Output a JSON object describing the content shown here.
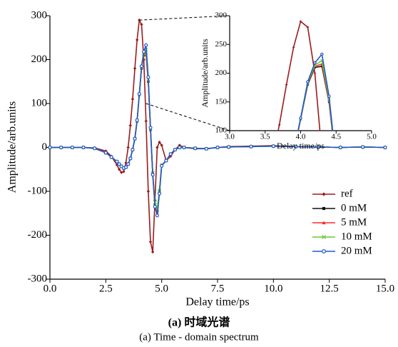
{
  "chart_data": {
    "type": "line",
    "xlabel": "Delay time/ps",
    "ylabel": "Amplitude/arb.units",
    "caption": "(a) 时域光谱",
    "subcaption": "(a) Time - domain spectrum",
    "xlim": [
      0,
      15
    ],
    "ylim": [
      -300,
      300
    ],
    "xticks": [
      {
        "value": 0,
        "label": "0.0"
      },
      {
        "value": 2.5,
        "label": "2.5"
      },
      {
        "value": 5,
        "label": "5.0"
      },
      {
        "value": 7.5,
        "label": "7.5"
      },
      {
        "value": 10,
        "label": "10.0"
      },
      {
        "value": 12.5,
        "label": "12.5"
      },
      {
        "value": 15,
        "label": "15.0"
      }
    ],
    "yticks": [
      -300,
      -200,
      -100,
      0,
      100,
      200,
      300
    ],
    "legend": "lower right",
    "x": [
      0,
      0.5,
      1,
      1.5,
      2,
      2.5,
      2.75,
      3,
      3.1,
      3.2,
      3.3,
      3.4,
      3.5,
      3.6,
      3.7,
      3.8,
      3.9,
      4.0,
      4.1,
      4.2,
      4.3,
      4.4,
      4.5,
      4.6,
      4.7,
      4.8,
      4.9,
      5.0,
      5.2,
      5.4,
      5.6,
      5.8,
      6.0,
      6.5,
      7,
      7.5,
      8,
      9,
      10,
      11,
      12,
      13,
      14,
      15
    ],
    "series": [
      {
        "name": "ref",
        "color": "#9b1c1c",
        "marker": "diamond",
        "values": [
          0,
          0,
          0,
          0,
          -1,
          -8,
          -20,
          -40,
          -50,
          -57,
          -55,
          -35,
          0,
          50,
          110,
          180,
          245,
          290,
          280,
          200,
          60,
          -100,
          -215,
          -238,
          -120,
          0,
          12,
          5,
          -30,
          -20,
          -5,
          5,
          0,
          -3,
          -3,
          0,
          2,
          3,
          4,
          2,
          1,
          0,
          1,
          0
        ]
      },
      {
        "name": "0 mM",
        "color": "#111111",
        "marker": "square",
        "values": [
          0,
          0,
          0,
          0,
          -2,
          -12,
          -22,
          -32,
          -38,
          -43,
          -47,
          -45,
          -38,
          -25,
          -5,
          20,
          60,
          120,
          180,
          210,
          212,
          150,
          40,
          -60,
          -130,
          -145,
          -100,
          -40,
          -30,
          -15,
          -5,
          0,
          0,
          -2,
          -3,
          0,
          1,
          2,
          3,
          2,
          1,
          0,
          1,
          0
        ]
      },
      {
        "name": "5 mM",
        "color": "#ff2a2a",
        "marker": "triangle",
        "values": [
          0,
          0,
          0,
          0,
          -2,
          -12,
          -22,
          -32,
          -38,
          -43,
          -47,
          -45,
          -38,
          -25,
          -5,
          20,
          60,
          120,
          182,
          212,
          216,
          152,
          40,
          -60,
          -132,
          -148,
          -100,
          -40,
          -30,
          -15,
          -5,
          0,
          0,
          -2,
          -3,
          0,
          1,
          2,
          3,
          2,
          1,
          0,
          1,
          0
        ]
      },
      {
        "name": "10 mM",
        "color": "#66cc33",
        "marker": "cross",
        "values": [
          0,
          0,
          0,
          0,
          -2,
          -12,
          -22,
          -32,
          -38,
          -43,
          -47,
          -45,
          -38,
          -25,
          -5,
          20,
          60,
          120,
          183,
          214,
          222,
          155,
          42,
          -58,
          -125,
          -140,
          -98,
          -40,
          -30,
          -15,
          -5,
          0,
          0,
          -2,
          -3,
          0,
          1,
          2,
          3,
          2,
          1,
          0,
          1,
          0
        ]
      },
      {
        "name": "20 mM",
        "color": "#2255cc",
        "marker": "circle",
        "values": [
          0,
          0,
          0,
          0,
          -2,
          -12,
          -22,
          -32,
          -38,
          -43,
          -47,
          -45,
          -38,
          -25,
          -5,
          20,
          62,
          122,
          185,
          218,
          233,
          160,
          45,
          -62,
          -135,
          -155,
          -105,
          -42,
          -30,
          -15,
          -5,
          0,
          0,
          -2,
          -3,
          0,
          1,
          2,
          3,
          2,
          1,
          0,
          1,
          0
        ]
      }
    ],
    "inset": {
      "xlabel": "Delay time/ps",
      "ylabel": "Amplitude/arb.units",
      "xlim": [
        3,
        5
      ],
      "ylim": [
        100,
        300
      ],
      "xticks": [
        {
          "value": 3,
          "label": "3.0"
        },
        {
          "value": 3.5,
          "label": "3.5"
        },
        {
          "value": 4,
          "label": "4.0"
        },
        {
          "value": 4.5,
          "label": "4.5"
        },
        {
          "value": 5,
          "label": "5.0"
        }
      ],
      "yticks": [
        100,
        150,
        200,
        250,
        300
      ]
    }
  }
}
